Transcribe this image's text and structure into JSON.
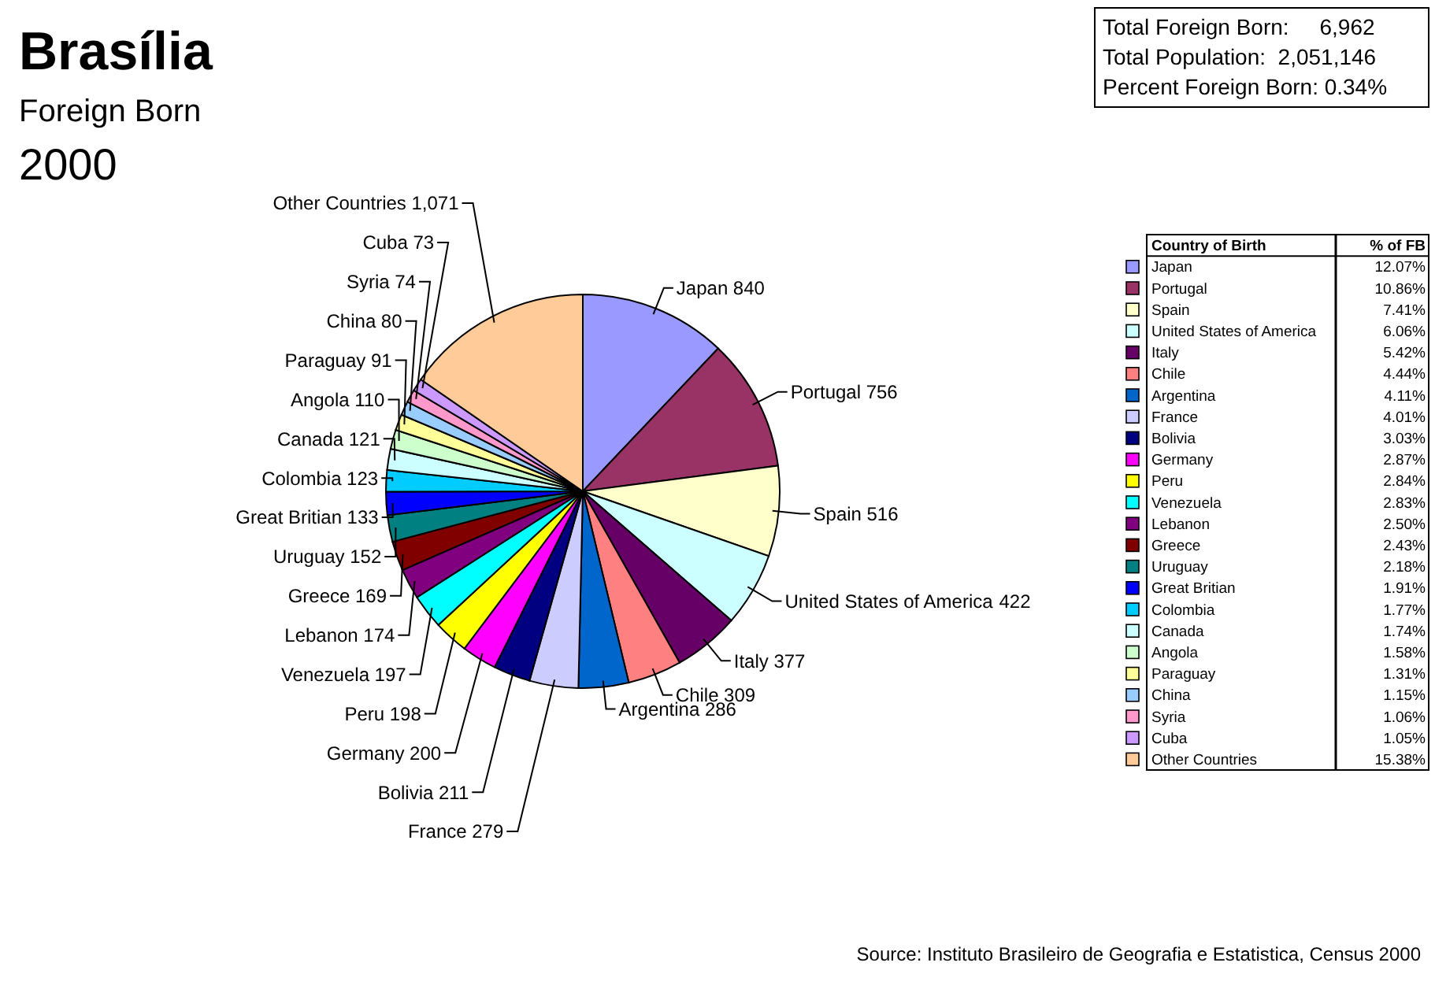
{
  "chart_data": [
    {
      "type": "pie",
      "title": "Brasília",
      "subtitle": "Foreign Born",
      "annotations": [
        "2000",
        "Total Foreign Born:     6,962",
        "Total Population:  2,051,146",
        "Percent Foreign Born: 0.34%",
        "Source: Instituto Brasileiro de Geografia e Estatistica, Census 2000"
      ],
      "categories": [
        "Japan",
        "Portugal",
        "Spain",
        "United States of America",
        "Italy",
        "Chile",
        "Argentina",
        "France",
        "Bolivia",
        "Germany",
        "Peru",
        "Venezuela",
        "Lebanon",
        "Greece",
        "Uruguay",
        "Great Britian",
        "Colombia",
        "Canada",
        "Angola",
        "Paraguay",
        "China",
        "Syria",
        "Cuba",
        "Other Countries"
      ],
      "values": [
        840,
        756,
        516,
        422,
        377,
        309,
        286,
        279,
        211,
        200,
        198,
        197,
        174,
        169,
        152,
        133,
        123,
        121,
        110,
        91,
        80,
        74,
        73,
        1071
      ],
      "value_labels": [
        "840",
        "756",
        "516",
        "422",
        "377",
        "309",
        "286",
        "279",
        "211",
        "200",
        "198",
        "197",
        "174",
        "169",
        "152",
        "133",
        "123",
        "121",
        "110",
        "91",
        "80",
        "74",
        "73",
        "1,071"
      ],
      "colors": [
        "#9999ff",
        "#993366",
        "#ffffcc",
        "#ccffff",
        "#660066",
        "#ff8080",
        "#0066cc",
        "#ccccff",
        "#000080",
        "#ff00ff",
        "#ffff00",
        "#00ffff",
        "#800080",
        "#800000",
        "#008080",
        "#0000ff",
        "#00ccff",
        "#ccffff",
        "#ccffcc",
        "#ffff99",
        "#99ccff",
        "#ff99cc",
        "#cc99ff",
        "#ffcc99"
      ],
      "data_labels": true
    },
    {
      "type": "other",
      "annotations": [
        "Country of Birth",
        "% of FB"
      ],
      "categories": [
        "Japan",
        "Portugal",
        "Spain",
        "United States of America",
        "Italy",
        "Chile",
        "Argentina",
        "France",
        "Bolivia",
        "Germany",
        "Peru",
        "Venezuela",
        "Lebanon",
        "Greece",
        "Uruguay",
        "Great Britian",
        "Colombia",
        "Canada",
        "Angola",
        "Paraguay",
        "China",
        "Syria",
        "Cuba",
        "Other Countries"
      ],
      "values": [
        12.07,
        10.86,
        7.41,
        6.06,
        5.42,
        4.44,
        4.11,
        4.01,
        3.03,
        2.87,
        2.84,
        2.83,
        2.5,
        2.43,
        2.18,
        1.91,
        1.77,
        1.74,
        1.58,
        1.31,
        1.15,
        1.06,
        1.05,
        15.38
      ],
      "value_labels": [
        "12.07%",
        "10.86%",
        "7.41%",
        "6.06%",
        "5.42%",
        "4.44%",
        "4.11%",
        "4.01%",
        "3.03%",
        "2.87%",
        "2.84%",
        "2.83%",
        "2.50%",
        "2.43%",
        "2.18%",
        "1.91%",
        "1.77%",
        "1.74%",
        "1.58%",
        "1.31%",
        "1.15%",
        "1.06%",
        "1.05%",
        "15.38%"
      ],
      "colors": [
        "#9999ff",
        "#993366",
        "#ffffcc",
        "#ccffff",
        "#660066",
        "#ff8080",
        "#0066cc",
        "#ccccff",
        "#000080",
        "#ff00ff",
        "#ffff00",
        "#00ffff",
        "#800080",
        "#800000",
        "#008080",
        "#0000ff",
        "#00ccff",
        "#ccffff",
        "#ccffcc",
        "#ffff99",
        "#99ccff",
        "#ff99cc",
        "#cc99ff",
        "#ffcc99"
      ]
    }
  ]
}
